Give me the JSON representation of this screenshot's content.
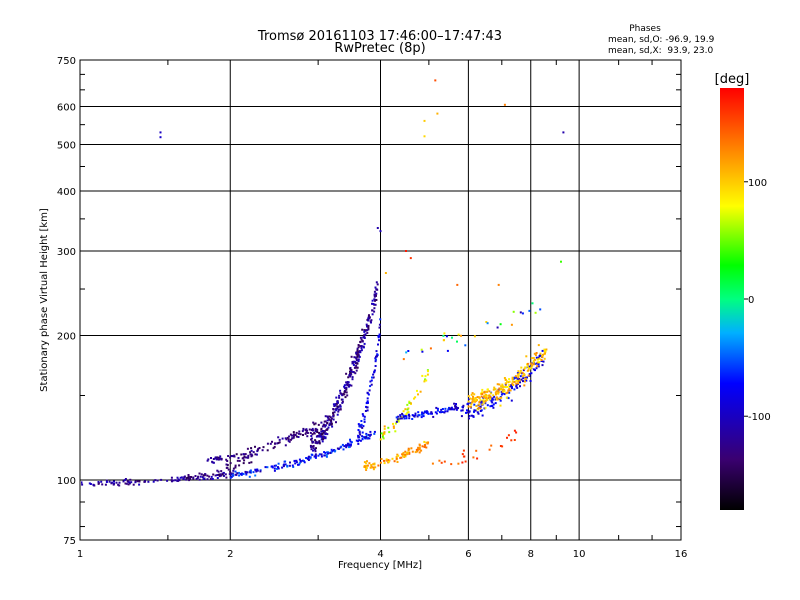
{
  "chart_data": {
    "type": "scatter",
    "title": "Tromsø 20161103 17:46:00–17:47:43",
    "subtitle": "RwPretec (8p)",
    "stats": {
      "heading": "Phases",
      "line_o": "mean, sd,O: -96.9, 19.9",
      "line_x": "mean, sd,X:  93.9, 23.0"
    },
    "xlabel": "Frequency [MHz]",
    "ylabel": "Stationary phase Virtual Height [km]",
    "x_scale": "log",
    "y_scale": "log",
    "xlim": [
      1,
      16
    ],
    "ylim": [
      75,
      750
    ],
    "x_ticks": [
      1,
      2,
      4,
      6,
      8,
      10,
      16
    ],
    "x_tick_labels": [
      "1",
      "2",
      "4",
      "6",
      "8",
      "10",
      "16"
    ],
    "y_ticks": [
      75,
      100,
      200,
      300,
      400,
      500,
      600,
      750
    ],
    "y_tick_labels": [
      "75",
      "100",
      "200",
      "300",
      "400",
      "500",
      "600",
      "750"
    ],
    "grid": true,
    "colorbar": {
      "label": "[deg]",
      "range": [
        -180,
        180
      ],
      "ticks": [
        100,
        0,
        -100
      ],
      "tick_labels": [
        "100",
        "0",
        "-100"
      ]
    },
    "points": [
      [
        1.45,
        530,
        -100
      ],
      [
        1.45,
        518,
        -95
      ],
      [
        5.15,
        680,
        150
      ],
      [
        7.1,
        605,
        130
      ],
      [
        5.2,
        580,
        110
      ],
      [
        4.9,
        560,
        100
      ],
      [
        4.9,
        520,
        95
      ],
      [
        9.3,
        530,
        -110
      ],
      [
        3.95,
        335,
        -110
      ],
      [
        4.0,
        330,
        -105
      ],
      [
        4.5,
        300,
        170
      ],
      [
        9.2,
        285,
        40
      ],
      [
        4.6,
        290,
        160
      ],
      [
        6.9,
        255,
        130
      ],
      [
        5.7,
        255,
        140
      ],
      [
        4.1,
        270,
        110
      ]
    ],
    "clusters": [
      {
        "name": "low-x",
        "f": [
          1.0,
          2.05
        ],
        "h0": 98,
        "h1": 103,
        "phase": [
          -140,
          -95
        ],
        "n": 110,
        "spread": 0.025
      },
      {
        "name": "low-o",
        "f": [
          1.6,
          2.3
        ],
        "h0": 101,
        "h1": 114,
        "phase": [
          -150,
          -120
        ],
        "n": 45,
        "spread": 0.04
      },
      {
        "name": "mid-x",
        "f": [
          2.0,
          3.9
        ],
        "h0": 103,
        "h1": 125,
        "phase": [
          -110,
          -40
        ],
        "n": 160,
        "spread": 0.03
      },
      {
        "name": "mid-o",
        "f": [
          1.8,
          3.0
        ],
        "h0": 110,
        "h1": 130,
        "phase": [
          -150,
          -110
        ],
        "n": 110,
        "spread": 0.04
      },
      {
        "name": "steep-o",
        "f": [
          2.9,
          3.95
        ],
        "h0": 120,
        "h1": 250,
        "phase": [
          -150,
          -95
        ],
        "n": 320,
        "spread": 0.09
      },
      {
        "name": "blue-rise",
        "f": [
          3.6,
          4.0
        ],
        "h0": 125,
        "h1": 210,
        "phase": [
          -115,
          -60
        ],
        "n": 70,
        "spread": 0.09
      },
      {
        "name": "yellow-x",
        "f": [
          3.7,
          5.0
        ],
        "h0": 107,
        "h1": 120,
        "phase": [
          90,
          140
        ],
        "n": 90,
        "spread": 0.035
      },
      {
        "name": "yellow-mid",
        "f": [
          4.0,
          5.0
        ],
        "h0": 125,
        "h1": 170,
        "phase": [
          40,
          120
        ],
        "n": 50,
        "spread": 0.06
      },
      {
        "name": "blue-f",
        "f": [
          4.3,
          5.8
        ],
        "h0": 135,
        "h1": 143,
        "phase": [
          -110,
          -60
        ],
        "n": 80,
        "spread": 0.03
      },
      {
        "name": "right-o",
        "f": [
          5.8,
          8.5
        ],
        "h0": 140,
        "h1": 180,
        "phase": [
          -110,
          -60
        ],
        "n": 150,
        "spread": 0.08
      },
      {
        "name": "right-x",
        "f": [
          6.0,
          8.6
        ],
        "h0": 145,
        "h1": 185,
        "phase": [
          80,
          130
        ],
        "n": 200,
        "spread": 0.08
      },
      {
        "name": "scatter-hi",
        "f": [
          4.3,
          8.5
        ],
        "h0": 185,
        "h1": 240,
        "phase": [
          -120,
          140
        ],
        "n": 30,
        "spread": 0.08
      },
      {
        "name": "orange-low",
        "f": [
          5.0,
          7.5
        ],
        "h0": 108,
        "h1": 125,
        "phase": [
          130,
          170
        ],
        "n": 25,
        "spread": 0.05
      }
    ]
  }
}
